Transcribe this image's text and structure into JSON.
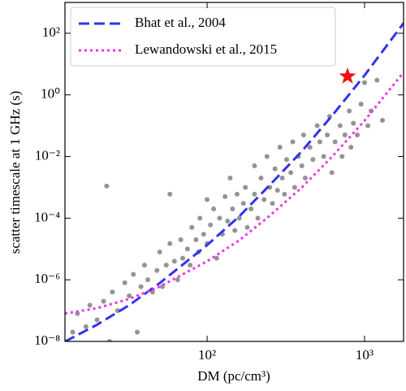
{
  "chart_data": {
    "type": "scatter",
    "x_label": "DM (pc/cm³)",
    "y_label": "scatter timescale at 1 GHz (s)",
    "xlog": true,
    "ylog": true,
    "xlim": [
      12.5,
      1770
    ],
    "ylim": [
      1e-08,
      1000
    ],
    "xticks": [
      {
        "value": 100,
        "label": "10²"
      },
      {
        "value": 1000,
        "label": "10³"
      }
    ],
    "yticks": [
      {
        "value": 1e-08,
        "label": "10⁻⁸"
      },
      {
        "value": 1e-06,
        "label": "10⁻⁶"
      },
      {
        "value": 0.0001,
        "label": "10⁻⁴"
      },
      {
        "value": 0.01,
        "label": "10⁻²"
      },
      {
        "value": 1,
        "label": "10⁰"
      },
      {
        "value": 100,
        "label": "10²"
      }
    ],
    "legend": "upper left",
    "color": "#888888",
    "x": [
      14,
      15,
      17,
      18,
      20,
      22,
      24,
      25,
      23,
      27,
      30,
      32,
      34,
      36,
      38,
      40,
      42,
      45,
      48,
      50,
      52,
      55,
      58,
      58,
      62,
      65,
      68,
      70,
      75,
      78,
      80,
      85,
      88,
      90,
      95,
      100,
      100,
      105,
      110,
      115,
      120,
      125,
      130,
      135,
      140,
      145,
      150,
      155,
      160,
      170,
      175,
      180,
      190,
      200,
      200,
      210,
      220,
      230,
      240,
      250,
      260,
      270,
      280,
      290,
      300,
      310,
      320,
      340,
      350,
      360,
      380,
      400,
      410,
      420,
      450,
      470,
      500,
      520,
      550,
      580,
      600,
      620,
      650,
      700,
      720,
      750,
      800,
      820,
      850,
      900,
      950,
      1000,
      1050,
      1100,
      1200,
      1300
    ],
    "values": [
      2e-08,
      8e-08,
      3e-08,
      1.5e-07,
      5e-08,
      2e-07,
      1e-08,
      4e-07,
      0.0011,
      1e-07,
      8e-07,
      3e-07,
      1.5e-06,
      2e-08,
      6e-07,
      3e-06,
      1e-06,
      4e-07,
      2e-06,
      8e-06,
      6e-07,
      3e-06,
      1.5e-05,
      0.0006,
      4e-06,
      1e-06,
      2e-05,
      5e-06,
      1e-05,
      3e-06,
      5e-05,
      2e-05,
      8e-06,
      0.0001,
      3e-05,
      1.5e-05,
      0.0004,
      6e-05,
      0.0002,
      5e-06,
      0.0001,
      3e-05,
      0.0005,
      8e-05,
      0.002,
      0.0002,
      4e-05,
      0.0006,
      0.0001,
      0.0003,
      0.001,
      5e-05,
      0.0002,
      0.005,
      0.0006,
      0.0001,
      0.002,
      0.0004,
      0.01,
      0.001,
      0.0003,
      0.004,
      0.0008,
      0.02,
      0.002,
      0.0006,
      0.008,
      0.003,
      0.03,
      0.001,
      0.01,
      0.005,
      0.05,
      0.002,
      0.02,
      0.008,
      0.1,
      0.03,
      0.01,
      0.05,
      0.2,
      0.003,
      0.03,
      0.1,
      0.01,
      0.05,
      0.3,
      0.02,
      0.12,
      0.05,
      0.5,
      2.5,
      0.1,
      0.3,
      3,
      0.15
    ],
    "lines": [
      {
        "name": "Bhat et al., 2004",
        "color": "#3333ee",
        "style": "dashed",
        "x": [
          12.5,
          20,
          32,
          50,
          100,
          160,
          250,
          400,
          630,
          1000,
          1770
        ],
        "values": [
          9.9e-09,
          3.5e-08,
          1.5e-07,
          7.8e-07,
          1.34e-05,
          0.000114,
          0.00118,
          0.0149,
          0.229,
          4.29,
          213
        ]
      },
      {
        "name": "Lewandowski et al., 2015",
        "color": "#ee33ee",
        "style": "dotted",
        "x": [
          12.5,
          20,
          32,
          50,
          100,
          160,
          250,
          400,
          630,
          1000,
          1770
        ],
        "values": [
          8.1e-08,
          1.2e-07,
          2.4e-07,
          6e-07,
          4e-06,
          1.9e-05,
          0.00012,
          0.001,
          0.0105,
          0.145,
          5.4
        ]
      }
    ],
    "highlight": {
      "x": 780,
      "value": 4,
      "color": "#ee1111"
    }
  }
}
